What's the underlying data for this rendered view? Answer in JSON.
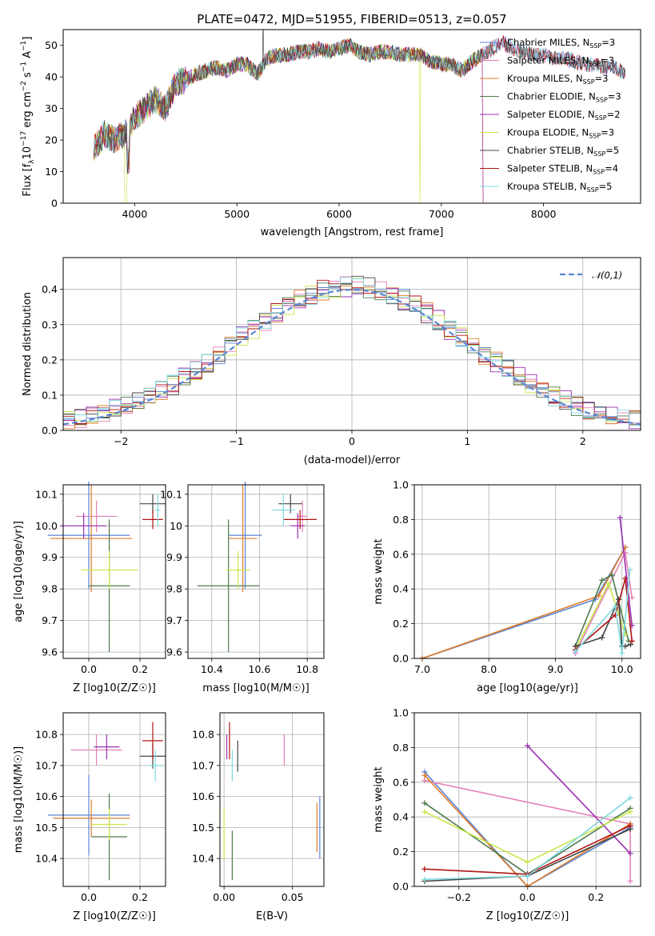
{
  "figure": {
    "title": "PLATE=0472, MJD=51955, FIBERID=0513, z=0.057"
  },
  "models": [
    {
      "name": "Chabrier MILES, N$_{SSP}$=3",
      "label_main": "Chabrier MILES, N",
      "label_sub": "SSP",
      "label_tail": "=3",
      "color": "#5b84d6"
    },
    {
      "name": "Salpeter MILES",
      "label_main": "Salpeter MILES, N",
      "label_sub": "SSP",
      "label_tail": "=3",
      "color": "#e580b8"
    },
    {
      "name": "Kroupa MILES",
      "label_main": "Kroupa MILES, N",
      "label_sub": "SSP",
      "label_tail": "=3",
      "color": "#e07b2a"
    },
    {
      "name": "Chabrier ELODIE",
      "label_main": "Chabrier ELODIE, N",
      "label_sub": "SSP",
      "label_tail": "=3",
      "color": "#4d7a4d"
    },
    {
      "name": "Salpeter ELODIE",
      "label_main": "Salpeter ELODIE, N",
      "label_sub": "SSP",
      "label_tail": "=2",
      "color": "#9a2fb3"
    },
    {
      "name": "Kroupa ELODIE",
      "label_main": "Kroupa ELODIE, N",
      "label_sub": "SSP",
      "label_tail": "=3",
      "color": "#c8e84a"
    },
    {
      "name": "Chabrier STELIB",
      "label_main": "Chabrier STELIB, N",
      "label_sub": "SSP",
      "label_tail": "=5",
      "color": "#444444"
    },
    {
      "name": "Salpeter STELIB",
      "label_main": "Salpeter STELIB, N",
      "label_sub": "SSP",
      "label_tail": "=4",
      "color": "#b01414"
    },
    {
      "name": "Kroupa STELIB",
      "label_main": "Kroupa STELIB, N",
      "label_sub": "SSP",
      "label_tail": "=5",
      "color": "#7fd8e0"
    }
  ],
  "chart_data": [
    {
      "id": "spectrum",
      "type": "line",
      "title": "PLATE=0472, MJD=51955, FIBERID=0513, z=0.057",
      "xlabel": "wavelength [Angstrom, rest frame]",
      "ylabel_main": "Flux [f",
      "ylabel_sub": "λ",
      "ylabel_rest": "10",
      "ylabel_sup1": "−17",
      "ylabel_mid": " erg cm",
      "ylabel_sup2": "−2",
      "ylabel_mid2": " s",
      "ylabel_sup3": "−1",
      "ylabel_end": " A",
      "ylabel_sup4": "−1",
      "ylabel_close": "]",
      "xlim": [
        3300,
        8950
      ],
      "ylim": [
        0,
        55
      ],
      "xticks": [
        4000,
        5000,
        6000,
        7000,
        8000
      ],
      "yticks": [
        0,
        10,
        20,
        30,
        40,
        50
      ],
      "envelope": [
        [
          3600,
          17
        ],
        [
          3700,
          22
        ],
        [
          3800,
          20
        ],
        [
          3900,
          22
        ],
        [
          4000,
          27
        ],
        [
          4100,
          30
        ],
        [
          4200,
          33
        ],
        [
          4300,
          30
        ],
        [
          4400,
          38
        ],
        [
          4500,
          39
        ],
        [
          4600,
          41
        ],
        [
          4700,
          42
        ],
        [
          4800,
          43
        ],
        [
          4900,
          42
        ],
        [
          5000,
          44
        ],
        [
          5100,
          44
        ],
        [
          5200,
          41
        ],
        [
          5300,
          46
        ],
        [
          5400,
          47
        ],
        [
          5500,
          47
        ],
        [
          5600,
          48
        ],
        [
          5700,
          48
        ],
        [
          5800,
          49
        ],
        [
          5900,
          48
        ],
        [
          6000,
          49
        ],
        [
          6100,
          50
        ],
        [
          6200,
          48
        ],
        [
          6300,
          47
        ],
        [
          6400,
          48
        ],
        [
          6500,
          48
        ],
        [
          6600,
          47
        ],
        [
          6700,
          47
        ],
        [
          6800,
          47
        ],
        [
          6900,
          45
        ],
        [
          7000,
          44
        ],
        [
          7100,
          44
        ],
        [
          7200,
          42
        ],
        [
          7300,
          45
        ],
        [
          7400,
          47
        ],
        [
          7500,
          49
        ],
        [
          7600,
          51
        ],
        [
          7700,
          49
        ],
        [
          7800,
          48
        ],
        [
          7900,
          47
        ],
        [
          8000,
          47
        ],
        [
          8100,
          46
        ],
        [
          8200,
          46
        ],
        [
          8300,
          45
        ],
        [
          8400,
          44
        ],
        [
          8500,
          44
        ],
        [
          8600,
          43
        ],
        [
          8700,
          43
        ],
        [
          8800,
          41
        ]
      ],
      "legend_position": "upper right"
    },
    {
      "id": "residuals",
      "type": "histogram",
      "xlabel": "(data-model)/error",
      "ylabel": "Normed distribution",
      "xlim": [
        -2.5,
        2.5
      ],
      "ylim": [
        0,
        0.49
      ],
      "xticks": [
        -2,
        -1,
        0,
        1,
        2
      ],
      "yticks": [
        0.0,
        0.1,
        0.2,
        0.3,
        0.4
      ],
      "legend_label": "𝒩(0,1)",
      "reference_color": "#5b84d6",
      "bin_width": 0.1,
      "grid": true
    },
    {
      "id": "age_vs_Z",
      "type": "errorbar",
      "xlabel": "Z [log10(Z/Z☉)]",
      "ylabel": "age  [log10(age/yr)]",
      "xlim": [
        -0.1,
        0.3
      ],
      "ylim": [
        9.58,
        10.13
      ],
      "xticks": [
        0.0,
        0.2
      ],
      "yticks": [
        9.6,
        9.7,
        9.8,
        9.9,
        10.0,
        10.1
      ],
      "points": [
        {
          "model": 0,
          "x": 0.0,
          "xerr": 0.16,
          "y": 9.97,
          "yerr": 0.17
        },
        {
          "model": 1,
          "x": 0.03,
          "xerr": 0.08,
          "y": 10.03,
          "yerr": 0.05
        },
        {
          "model": 2,
          "x": 0.01,
          "xerr": 0.16,
          "y": 9.96,
          "yerr": 0.17
        },
        {
          "model": 3,
          "x": 0.08,
          "xerr": 0.08,
          "y": 9.81,
          "yerr": 0.21
        },
        {
          "model": 4,
          "x": -0.02,
          "xerr": 0.09,
          "y": 10.0,
          "yerr": 0.04
        },
        {
          "model": 5,
          "x": 0.08,
          "xerr": 0.11,
          "y": 9.86,
          "yerr": 0.06
        },
        {
          "model": 6,
          "x": 0.25,
          "xerr": 0.05,
          "y": 10.07,
          "yerr": 0.03
        },
        {
          "model": 7,
          "x": 0.25,
          "xerr": 0.04,
          "y": 10.02,
          "yerr": 0.03
        },
        {
          "model": 8,
          "x": 0.27,
          "xerr": 0.01,
          "y": 10.05,
          "yerr": 0.05
        }
      ],
      "grid": true
    },
    {
      "id": "age_vs_mass",
      "type": "errorbar",
      "xlabel": "mass [log10(M/M☉)]",
      "ylabel": "",
      "xlim": [
        10.3,
        10.87
      ],
      "ylim": [
        9.58,
        10.13
      ],
      "xticks": [
        10.4,
        10.6,
        10.8
      ],
      "yticks": [
        9.6,
        9.7,
        9.8,
        9.9,
        10.0,
        10.1
      ],
      "points": [
        {
          "model": 0,
          "x": 10.54,
          "xerr": 0.07,
          "y": 9.97,
          "yerr": 0.17
        },
        {
          "model": 1,
          "x": 10.78,
          "xerr": 0.02,
          "y": 10.03,
          "yerr": 0.05
        },
        {
          "model": 2,
          "x": 10.53,
          "xerr": 0.06,
          "y": 9.96,
          "yerr": 0.17
        },
        {
          "model": 3,
          "x": 10.47,
          "xerr": 0.13,
          "y": 9.81,
          "yerr": 0.21
        },
        {
          "model": 4,
          "x": 10.76,
          "xerr": 0.03,
          "y": 10.0,
          "yerr": 0.04
        },
        {
          "model": 5,
          "x": 10.51,
          "xerr": 0.05,
          "y": 9.86,
          "yerr": 0.06
        },
        {
          "model": 6,
          "x": 10.73,
          "xerr": 0.05,
          "y": 10.07,
          "yerr": 0.03
        },
        {
          "model": 7,
          "x": 10.77,
          "xerr": 0.07,
          "y": 10.02,
          "yerr": 0.03
        },
        {
          "model": 8,
          "x": 10.7,
          "xerr": 0.05,
          "y": 10.05,
          "yerr": 0.05
        }
      ],
      "grid": true
    },
    {
      "id": "weight_vs_age",
      "type": "line",
      "xlabel": "age  [log10(age/yr)]",
      "ylabel": "mass weight",
      "xlim": [
        6.88,
        10.28
      ],
      "ylim": [
        0,
        1
      ],
      "xticks": [
        7,
        8,
        9,
        10
      ],
      "yticks": [
        0.0,
        0.2,
        0.4,
        0.6,
        0.8,
        1.0
      ],
      "series": [
        {
          "model": 0,
          "x": [
            7.0,
            9.6,
            10.05
          ],
          "y": [
            0.0,
            0.34,
            0.64
          ]
        },
        {
          "model": 1,
          "x": [
            9.3,
            10.05,
            10.15
          ],
          "y": [
            0.03,
            0.61,
            0.35
          ]
        },
        {
          "model": 2,
          "x": [
            7.0,
            9.65,
            10.05
          ],
          "y": [
            0.0,
            0.36,
            0.64
          ]
        },
        {
          "model": 3,
          "x": [
            9.3,
            9.7,
            9.85,
            10.1
          ],
          "y": [
            0.07,
            0.45,
            0.48,
            0.1
          ]
        },
        {
          "model": 4,
          "x": [
            9.97,
            10.15
          ],
          "y": [
            0.81,
            0.19
          ]
        },
        {
          "model": 5,
          "x": [
            9.3,
            9.8,
            10.05
          ],
          "y": [
            0.05,
            0.43,
            0.14
          ]
        },
        {
          "model": 6,
          "x": [
            9.3,
            9.7,
            9.95,
            10.0,
            10.05,
            10.13
          ],
          "y": [
            0.07,
            0.12,
            0.34,
            0.07,
            0.07,
            0.08
          ]
        },
        {
          "model": 7,
          "x": [
            9.3,
            9.9,
            10.05,
            10.15
          ],
          "y": [
            0.05,
            0.25,
            0.46,
            0.1
          ]
        },
        {
          "model": 8,
          "x": [
            9.3,
            9.9,
            10.0,
            10.12
          ],
          "y": [
            0.04,
            0.3,
            0.03,
            0.51
          ]
        }
      ],
      "grid": true
    },
    {
      "id": "mass_vs_Z",
      "type": "errorbar",
      "xlabel": "Z [log10(Z/Z☉)]",
      "ylabel": "mass [log10(M/M☉)]",
      "xlim": [
        -0.1,
        0.3
      ],
      "ylim": [
        10.31,
        10.87
      ],
      "xticks": [
        0.0,
        0.2
      ],
      "yticks": [
        10.4,
        10.5,
        10.6,
        10.7,
        10.8
      ],
      "points": [
        {
          "model": 0,
          "x": 0.0,
          "xerr": 0.16,
          "y": 10.54,
          "yerr": 0.13
        },
        {
          "model": 1,
          "x": 0.03,
          "xerr": 0.1,
          "y": 10.75,
          "yerr": 0.05
        },
        {
          "model": 2,
          "x": 0.01,
          "xerr": 0.15,
          "y": 10.53,
          "yerr": 0.06
        },
        {
          "model": 3,
          "x": 0.08,
          "xerr": 0.07,
          "y": 10.47,
          "yerr": 0.14
        },
        {
          "model": 4,
          "x": 0.07,
          "xerr": 0.05,
          "y": 10.76,
          "yerr": 0.04
        },
        {
          "model": 5,
          "x": 0.08,
          "xerr": 0.07,
          "y": 10.51,
          "yerr": 0.05
        },
        {
          "model": 6,
          "x": 0.25,
          "xerr": 0.05,
          "y": 10.73,
          "yerr": 0.04
        },
        {
          "model": 7,
          "x": 0.25,
          "xerr": 0.04,
          "y": 10.78,
          "yerr": 0.06
        },
        {
          "model": 8,
          "x": 0.26,
          "xerr": 0.03,
          "y": 10.7,
          "yerr": 0.05
        }
      ],
      "grid": true
    },
    {
      "id": "mass_vs_EBV",
      "type": "errorbar",
      "xlabel": "E(B-V)",
      "ylabel": "",
      "xlim": [
        -0.003,
        0.073
      ],
      "ylim": [
        10.31,
        10.87
      ],
      "xticks": [
        0.0,
        0.05
      ],
      "xtick_labels": [
        "0.00",
        "0.05"
      ],
      "yticks": [
        10.4,
        10.5,
        10.6,
        10.7,
        10.8
      ],
      "points": [
        {
          "model": 0,
          "x": 0.07,
          "xerr": 0,
          "y": 10.5,
          "yerr": 0.1
        },
        {
          "model": 1,
          "x": 0.044,
          "xerr": 0,
          "y": 10.75,
          "yerr": 0.05
        },
        {
          "model": 2,
          "x": 0.068,
          "xerr": 0,
          "y": 10.5,
          "yerr": 0.08
        },
        {
          "model": 3,
          "x": 0.006,
          "xerr": 0,
          "y": 10.41,
          "yerr": 0.08
        },
        {
          "model": 4,
          "x": 0.002,
          "xerr": 0,
          "y": 10.76,
          "yerr": 0.04
        },
        {
          "model": 5,
          "x": 0.0,
          "xerr": 0,
          "y": 10.48,
          "yerr": 0.08
        },
        {
          "model": 6,
          "x": 0.01,
          "xerr": 0,
          "y": 10.73,
          "yerr": 0.05
        },
        {
          "model": 7,
          "x": 0.004,
          "xerr": 0,
          "y": 10.78,
          "yerr": 0.06
        },
        {
          "model": 8,
          "x": 0.006,
          "xerr": 0,
          "y": 10.7,
          "yerr": 0.05
        }
      ],
      "grid": true
    },
    {
      "id": "weight_vs_Z",
      "type": "line",
      "xlabel": "Z [log10(Z/Z☉)]",
      "ylabel": "mass weight",
      "xlim": [
        -0.33,
        0.33
      ],
      "ylim": [
        0,
        1
      ],
      "xticks": [
        -0.2,
        0.0,
        0.2
      ],
      "xtick_labels": [
        "−0.2",
        "0.0",
        "0.2"
      ],
      "yticks": [
        0.0,
        0.2,
        0.4,
        0.6,
        0.8,
        1.0
      ],
      "series": [
        {
          "model": 0,
          "x": [
            -0.3,
            0.0,
            0.3
          ],
          "y": [
            0.66,
            0.0,
            0.34
          ]
        },
        {
          "model": 1,
          "x": [
            -0.3,
            0.3,
            0.3
          ],
          "y": [
            0.61,
            0.36,
            0.03
          ]
        },
        {
          "model": 2,
          "x": [
            -0.3,
            0.0,
            0.3
          ],
          "y": [
            0.64,
            0.0,
            0.36
          ]
        },
        {
          "model": 3,
          "x": [
            -0.3,
            0.0,
            0.3
          ],
          "y": [
            0.48,
            0.07,
            0.45
          ]
        },
        {
          "model": 4,
          "x": [
            0.0,
            0.3
          ],
          "y": [
            0.81,
            0.19
          ]
        },
        {
          "model": 5,
          "x": [
            -0.3,
            0.0,
            0.3
          ],
          "y": [
            0.43,
            0.14,
            0.43
          ]
        },
        {
          "model": 6,
          "x": [
            -0.3,
            0.0,
            0.3
          ],
          "y": [
            0.03,
            0.06,
            0.33
          ]
        },
        {
          "model": 7,
          "x": [
            -0.3,
            0.0,
            0.3
          ],
          "y": [
            0.1,
            0.07,
            0.35
          ]
        },
        {
          "model": 8,
          "x": [
            -0.3,
            0.0,
            0.3
          ],
          "y": [
            0.04,
            0.06,
            0.51
          ]
        }
      ],
      "grid": true
    }
  ]
}
